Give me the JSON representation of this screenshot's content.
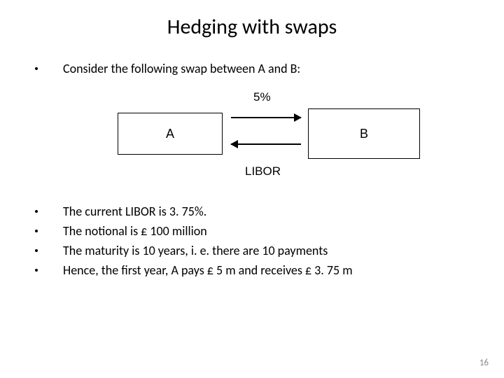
{
  "title": "Hedging with swaps",
  "intro_bullet": "Consider the following swap between A and B:",
  "diagram": {
    "box_a_label": "A",
    "box_b_label": "B",
    "top_flow_label": "5%",
    "bottom_flow_label": "LIBOR"
  },
  "bullets": [
    "The current LIBOR is 3. 75%.",
    "The notional is £ 100 million",
    "The maturity is 10 years, i. e. there are 10 payments",
    "Hence, the first year, A pays £ 5 m and receives £ 3. 75 m"
  ],
  "page_number": "16"
}
